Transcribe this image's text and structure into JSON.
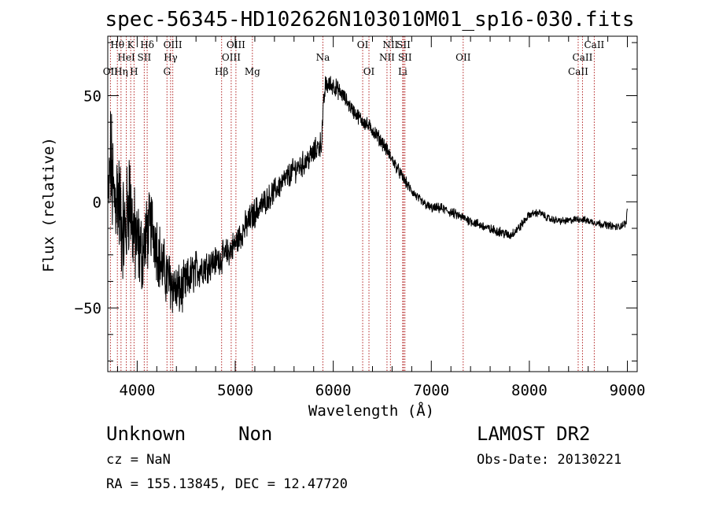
{
  "chart_data": {
    "type": "line",
    "title": "spec-56345-HD102626N103010M01_sp16-030.fits",
    "xlabel": "Wavelength (Å)",
    "ylabel": "Flux (relative)",
    "xlim": [
      3700,
      9100
    ],
    "ylim": [
      -80,
      78
    ],
    "x_ticks": [
      4000,
      5000,
      6000,
      7000,
      8000,
      9000
    ],
    "y_ticks": [
      -50,
      0,
      50
    ],
    "grid": false,
    "spectrum_anchors": {
      "x": [
        3700,
        3730,
        3760,
        3800,
        3840,
        3880,
        3920,
        3960,
        4000,
        4050,
        4100,
        4150,
        4200,
        4250,
        4300,
        4350,
        4400,
        4450,
        4500,
        4600,
        4700,
        4800,
        4900,
        5000,
        5100,
        5200,
        5300,
        5400,
        5500,
        5600,
        5700,
        5800,
        5880,
        5900,
        5920,
        6000,
        6100,
        6200,
        6300,
        6400,
        6500,
        6600,
        6700,
        6800,
        6900,
        7000,
        7100,
        7200,
        7300,
        7400,
        7500,
        7600,
        7700,
        7800,
        7900,
        8000,
        8100,
        8200,
        8300,
        8400,
        8500,
        8600,
        8700,
        8800,
        8900,
        8990,
        9000
      ],
      "y": [
        -5,
        20,
        0,
        5,
        -10,
        -15,
        5,
        -15,
        -20,
        -25,
        -15,
        -10,
        -20,
        -30,
        -35,
        -38,
        -42,
        -42,
        -38,
        -32,
        -30,
        -28,
        -25,
        -20,
        -12,
        -5,
        0,
        5,
        10,
        15,
        18,
        23,
        28,
        45,
        55,
        55,
        50,
        43,
        38,
        34,
        28,
        20,
        12,
        5,
        0,
        -3,
        -3,
        -5,
        -7,
        -9,
        -11,
        -13,
        -14,
        -16,
        -12,
        -6,
        -5,
        -8,
        -9,
        -9,
        -8,
        -9,
        -10,
        -11,
        -12,
        -10,
        0
      ],
      "noise": [
        14,
        24,
        24,
        22,
        22,
        22,
        22,
        20,
        18,
        16,
        15,
        14,
        14,
        13,
        12,
        12,
        11,
        10,
        9,
        8,
        7,
        6,
        6,
        6,
        6,
        6,
        5,
        5,
        5,
        5,
        5,
        5,
        5,
        4,
        4,
        4,
        3,
        3,
        3,
        3,
        3,
        2.5,
        2.5,
        2,
        2,
        2,
        2,
        2,
        2,
        2,
        2,
        2,
        2,
        2,
        2,
        1.5,
        1.5,
        1.5,
        1.5,
        1.5,
        1.5,
        1.5,
        1.5,
        1.5,
        1.5,
        1.5,
        1.5
      ]
    },
    "spectral_lines": [
      {
        "label": "OII",
        "wave": 3727,
        "row": 3
      },
      {
        "label": "Hθ",
        "wave": 3798,
        "row": 1
      },
      {
        "label": "Hη",
        "wave": 3835,
        "row": 3
      },
      {
        "label": "HeI",
        "wave": 3889,
        "row": 2
      },
      {
        "label": "K",
        "wave": 3934,
        "row": 1
      },
      {
        "label": "H",
        "wave": 3968,
        "row": 3
      },
      {
        "label": "SII",
        "wave": 4072,
        "row": 2
      },
      {
        "label": "Hδ",
        "wave": 4102,
        "row": 1
      },
      {
        "label": "G",
        "wave": 4304,
        "row": 3
      },
      {
        "label": "OIII",
        "wave": 4363,
        "row": 1
      },
      {
        "label": "Hγ",
        "wave": 4341,
        "row": 2
      },
      {
        "label": "Hβ",
        "wave": 4861,
        "row": 3
      },
      {
        "label": "OIII",
        "wave": 4959,
        "row": 2
      },
      {
        "label": "OIII",
        "wave": 5007,
        "row": 1
      },
      {
        "label": "Mg",
        "wave": 5175,
        "row": 3
      },
      {
        "label": "Na",
        "wave": 5894,
        "row": 2
      },
      {
        "label": "OI",
        "wave": 6300,
        "row": 1
      },
      {
        "label": "OI",
        "wave": 6364,
        "row": 3
      },
      {
        "label": "NII",
        "wave": 6548,
        "row": 2
      },
      {
        "label": "NII",
        "wave": 6583,
        "row": 1
      },
      {
        "label": "SII",
        "wave": 6717,
        "row": 1
      },
      {
        "label": "SII",
        "wave": 6731,
        "row": 2
      },
      {
        "label": "Li",
        "wave": 6708,
        "row": 3
      },
      {
        "label": "OII",
        "wave": 7325,
        "row": 2
      },
      {
        "label": "CaII",
        "wave": 8498,
        "row": 3
      },
      {
        "label": "CaII",
        "wave": 8542,
        "row": 2
      },
      {
        "label": "CaII",
        "wave": 8662,
        "row": 1
      }
    ],
    "line_color": "#b22222"
  },
  "footer": {
    "object_type": "Unknown",
    "subclass": "Non",
    "survey": "LAMOST DR2",
    "cz": "cz = NaN",
    "obs_date": "Obs-Date: 20130221",
    "coords": "RA = 155.13845, DEC =  12.47720"
  }
}
